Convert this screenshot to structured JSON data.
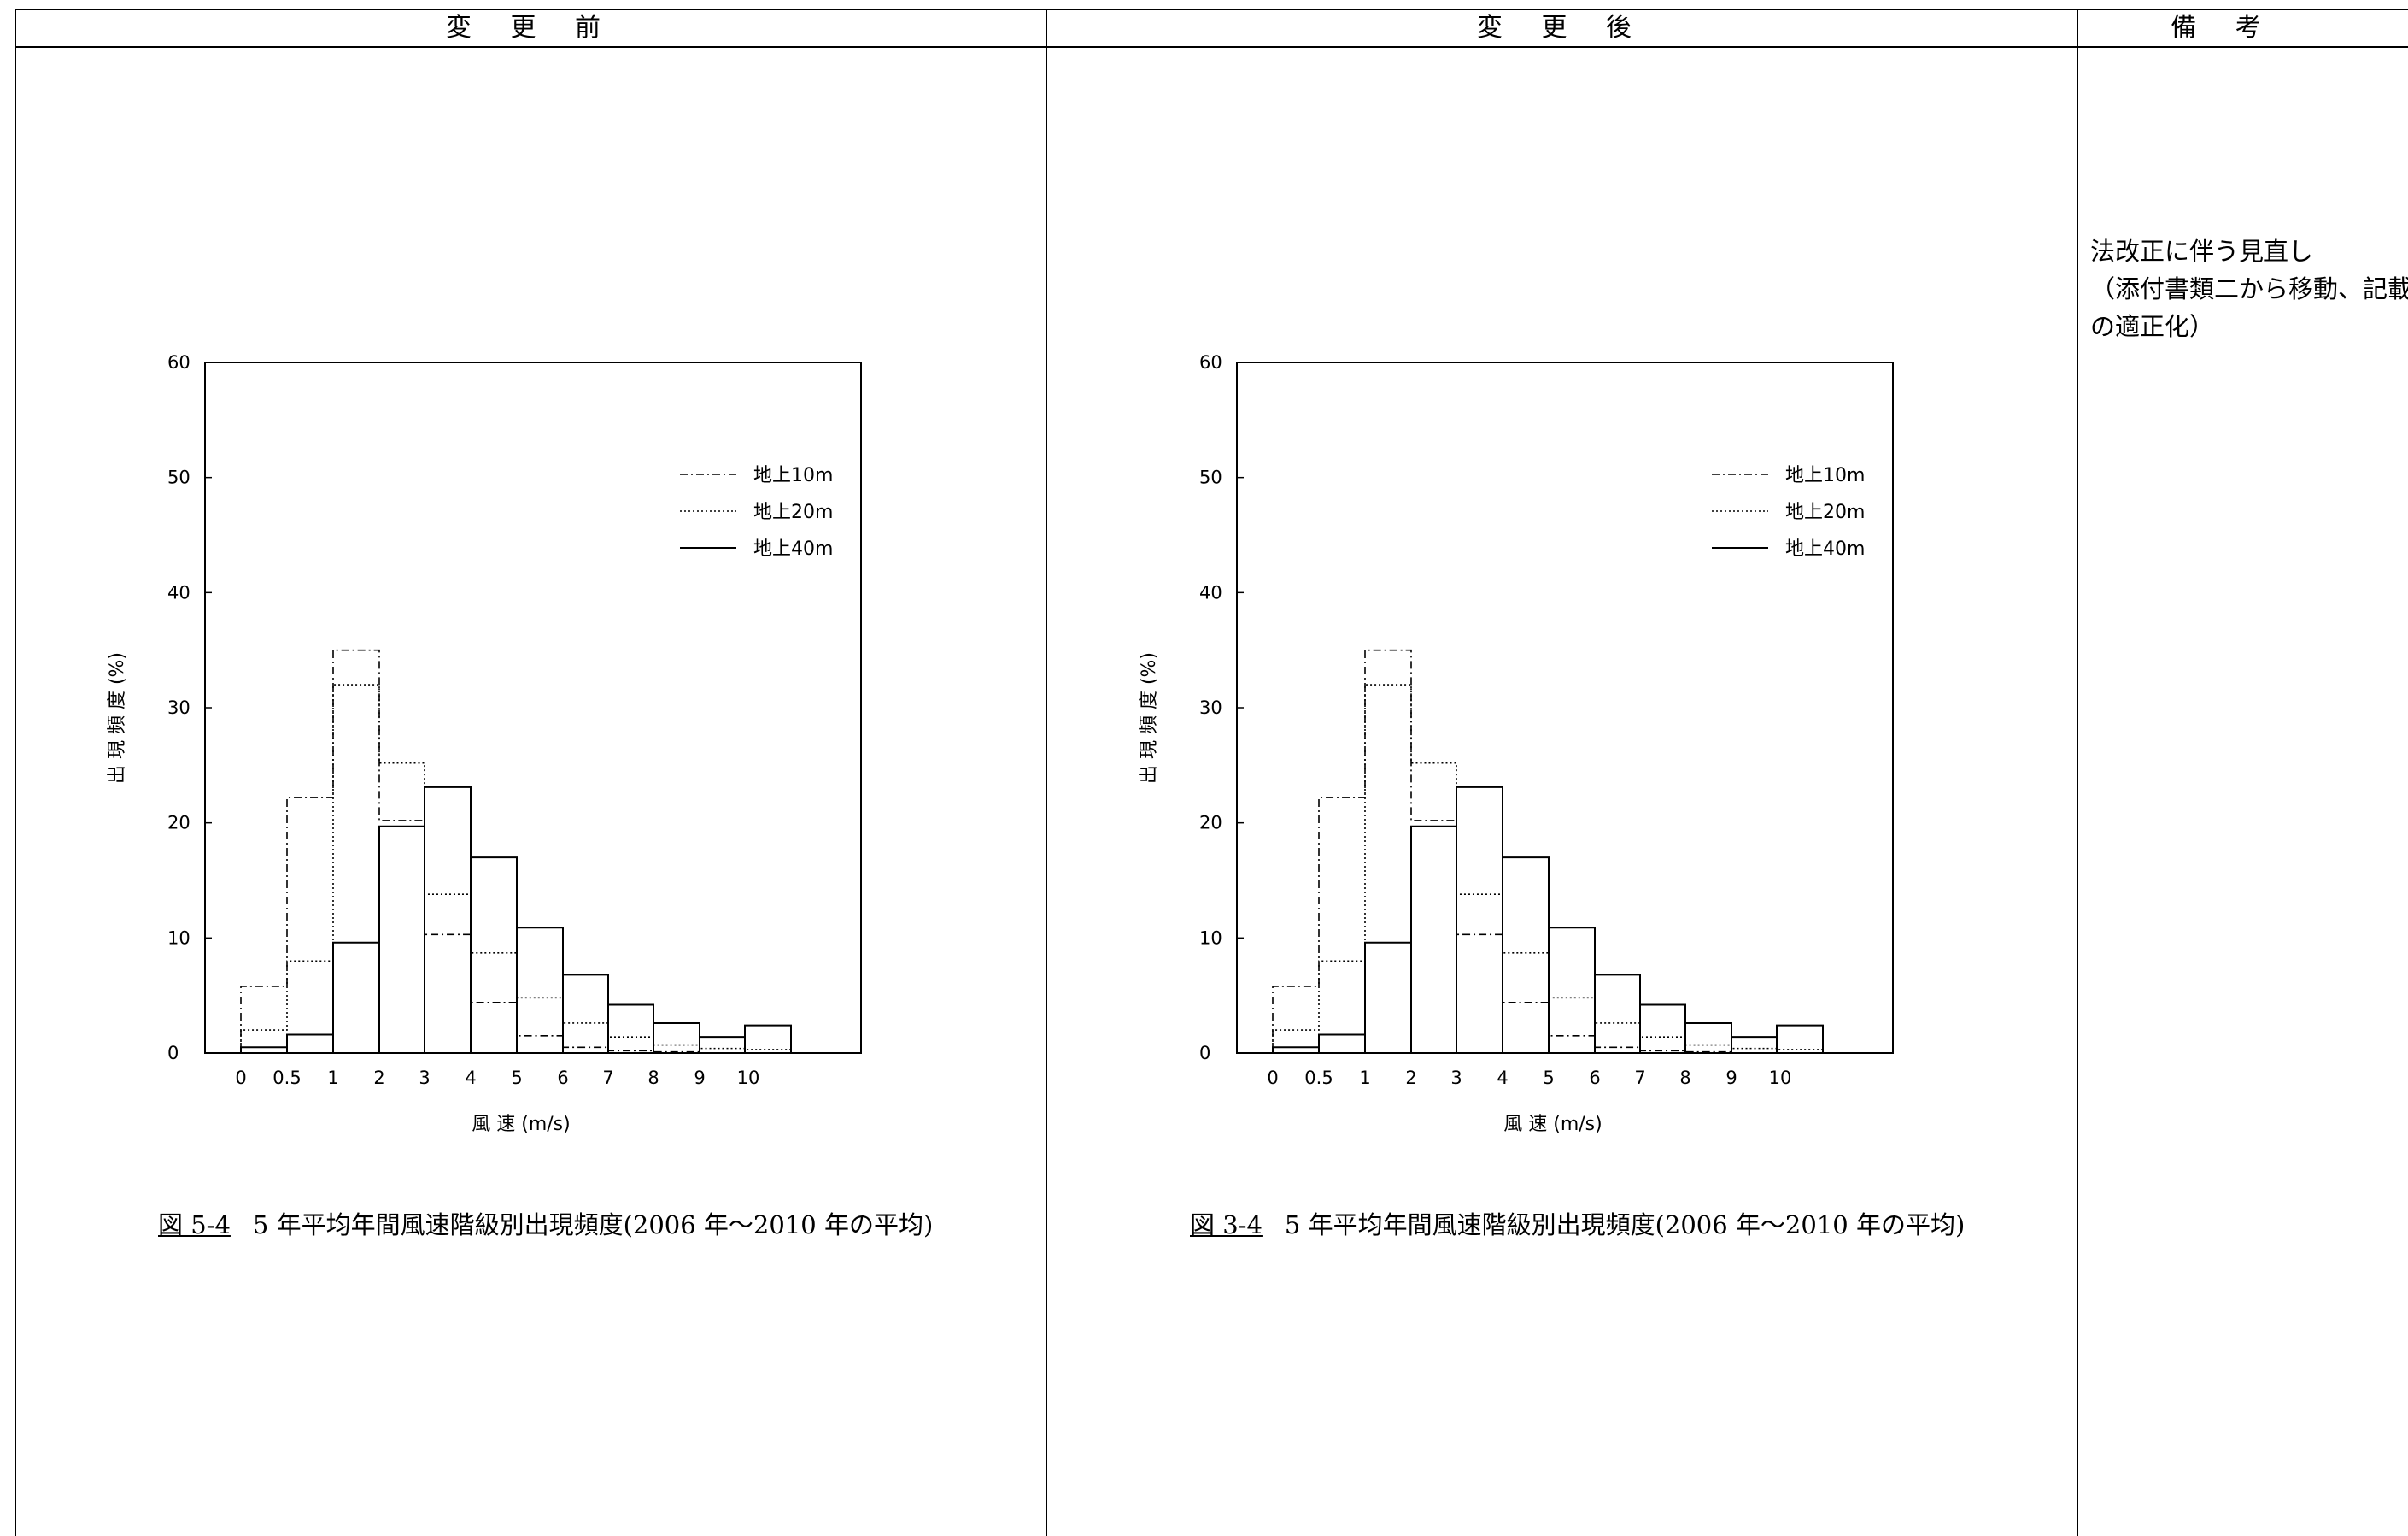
{
  "header": {
    "before": "変 更 前",
    "after": "変 更 後",
    "remarks": "備 考"
  },
  "remarks": {
    "lines": [
      "法改正に伴う見直し",
      "（添付書類二から移動、記載",
      "の適正化）"
    ]
  },
  "captions": [
    {
      "number": "図 5-4",
      "text": "5 年平均年間風速階級別出現頻度(2006 年～2010 年の平均)"
    },
    {
      "number": "図 3-4",
      "text": "5 年平均年間風速階級別出現頻度(2006 年～2010 年の平均)"
    }
  ],
  "chart_data": [
    {
      "type": "bar",
      "xlabel": "風 速 (m/s)",
      "ylabel": "出 現 頻 度 (%)",
      "ylim": [
        0,
        60
      ],
      "yticks": [
        "0",
        "10",
        "20",
        "30",
        "40",
        "50",
        "60"
      ],
      "xticks": [
        "0",
        "0.5",
        "1",
        "2",
        "3",
        "4",
        "5",
        "6",
        "7",
        "8",
        "9",
        "10"
      ],
      "grid": false,
      "legend_position": "top-right",
      "series": [
        {
          "name": "地上10m",
          "style": "dashdot",
          "values": [
            5.8,
            22.2,
            35.0,
            20.2,
            10.3,
            4.4,
            1.5,
            0.5,
            0.2,
            0.1,
            0.0,
            0.0
          ]
        },
        {
          "name": "地上20m",
          "style": "dotted",
          "values": [
            2.0,
            8.0,
            32.0,
            25.2,
            13.8,
            8.7,
            4.8,
            2.6,
            1.4,
            0.7,
            0.4,
            0.3
          ]
        },
        {
          "name": "地上40m",
          "style": "solid",
          "values": [
            0.5,
            1.6,
            9.6,
            19.7,
            23.1,
            17.0,
            10.9,
            6.8,
            4.2,
            2.6,
            1.4,
            2.4
          ]
        }
      ]
    },
    {
      "type": "bar",
      "xlabel": "風 速 (m/s)",
      "ylabel": "出 現 頻 度 (%)",
      "ylim": [
        0,
        60
      ],
      "yticks": [
        "0",
        "10",
        "20",
        "30",
        "40",
        "50",
        "60"
      ],
      "xticks": [
        "0",
        "0.5",
        "1",
        "2",
        "3",
        "4",
        "5",
        "6",
        "7",
        "8",
        "9",
        "10"
      ],
      "grid": false,
      "legend_position": "top-right",
      "series": [
        {
          "name": "地上10m",
          "style": "dashdot",
          "values": [
            5.8,
            22.2,
            35.0,
            20.2,
            10.3,
            4.4,
            1.5,
            0.5,
            0.2,
            0.1,
            0.0,
            0.0
          ]
        },
        {
          "name": "地上20m",
          "style": "dotted",
          "values": [
            2.0,
            8.0,
            32.0,
            25.2,
            13.8,
            8.7,
            4.8,
            2.6,
            1.4,
            0.7,
            0.4,
            0.3
          ]
        },
        {
          "name": "地上40m",
          "style": "solid",
          "values": [
            0.5,
            1.6,
            9.6,
            19.7,
            23.1,
            17.0,
            10.9,
            6.8,
            4.2,
            2.6,
            1.4,
            2.4
          ]
        }
      ]
    }
  ]
}
